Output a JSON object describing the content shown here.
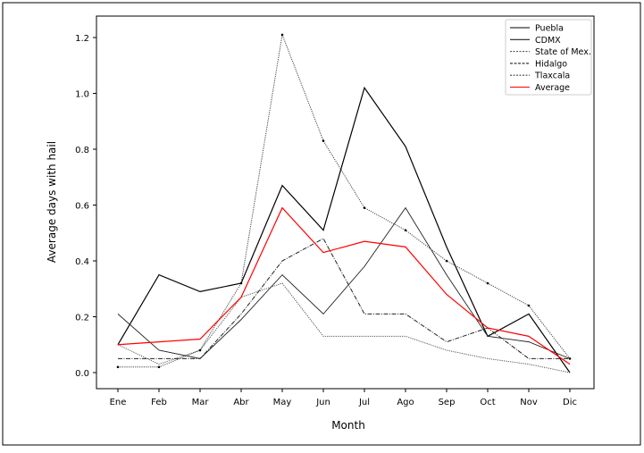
{
  "chart_data": {
    "type": "line",
    "xlabel": "Month",
    "ylabel": "Average days with hail",
    "categories": [
      "Ene",
      "Feb",
      "Mar",
      "Abr",
      "May",
      "Jun",
      "Jul",
      "Ago",
      "Sep",
      "Oct",
      "Nov",
      "Dic"
    ],
    "ylim": [
      -0.05,
      1.3
    ],
    "yticks": [
      "0.0",
      "0.2",
      "0.4",
      "0.6",
      "0.8",
      "1.0",
      "1.2"
    ],
    "grid": false,
    "legend_position": "top-right",
    "series": [
      {
        "name": "Puebla",
        "style": "solid",
        "color": "#000000",
        "values": [
          0.1,
          0.35,
          0.29,
          0.32,
          0.67,
          0.51,
          1.02,
          0.81,
          0.45,
          0.13,
          0.21,
          0.0
        ]
      },
      {
        "name": "CDMX",
        "style": "solid-thin",
        "color": "#222222",
        "values": [
          0.21,
          0.08,
          0.05,
          0.19,
          0.35,
          0.21,
          0.38,
          0.59,
          0.35,
          0.13,
          0.11,
          0.05
        ]
      },
      {
        "name": "State of Mex.",
        "style": "dotted",
        "color": "#555555",
        "values": [
          0.1,
          0.03,
          0.08,
          0.27,
          0.32,
          0.13,
          0.13,
          0.13,
          0.08,
          0.05,
          0.03,
          0.0
        ]
      },
      {
        "name": "Hidalgo",
        "style": "dashdot",
        "color": "#222222",
        "values": [
          0.05,
          0.05,
          0.05,
          0.21,
          0.4,
          0.48,
          0.21,
          0.21,
          0.11,
          0.16,
          0.05,
          0.05
        ]
      },
      {
        "name": "Tlaxcala",
        "style": "dotted-marker",
        "color": "#444444",
        "values": [
          0.02,
          0.02,
          0.08,
          0.32,
          1.21,
          0.83,
          0.59,
          0.51,
          0.4,
          0.32,
          0.24,
          0.05
        ]
      },
      {
        "name": "Average",
        "style": "solid",
        "color": "#ff0000",
        "values": [
          0.1,
          0.11,
          0.12,
          0.27,
          0.59,
          0.43,
          0.47,
          0.45,
          0.28,
          0.16,
          0.13,
          0.03
        ]
      }
    ]
  }
}
